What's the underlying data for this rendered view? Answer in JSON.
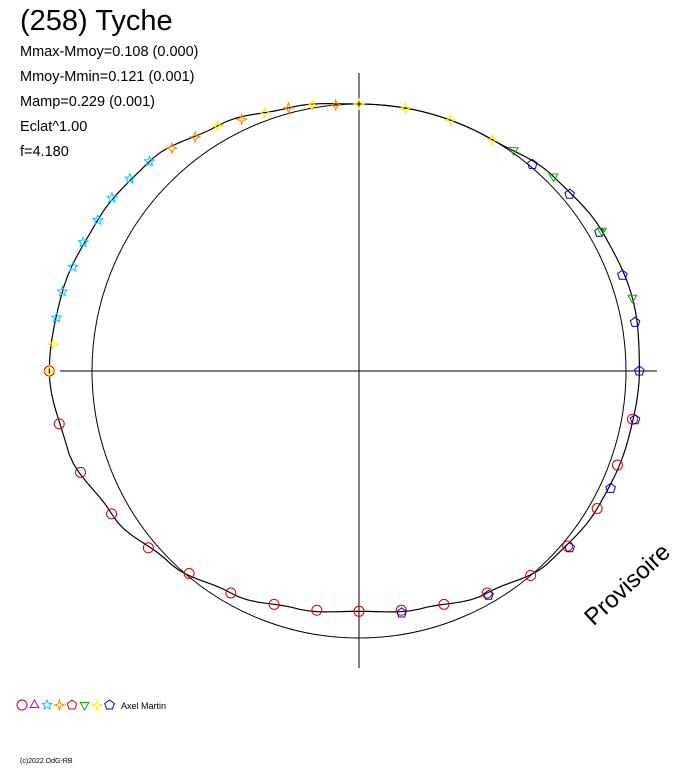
{
  "title": "(258) Tyche",
  "stats": [
    "Mmax-Mmoy=0.108 (0.000)",
    "Mmoy-Mmin=0.121 (0.001)",
    "Mamp=0.229 (0.001)",
    "Eclat^1.00",
    "f=4.180"
  ],
  "watermark": "Provisoire",
  "copyright": "(c)2022 OdG-RB",
  "legend": {
    "author": "Axel Martin",
    "markers": [
      {
        "shape": "circle",
        "color": "#dd0000"
      },
      {
        "shape": "triangle",
        "color": "#cc00cc"
      },
      {
        "shape": "star",
        "color": "#00c8ff"
      },
      {
        "shape": "star4",
        "color": "#ff8800"
      },
      {
        "shape": "pentagon",
        "color": "#dd0000"
      },
      {
        "shape": "triangle-down",
        "color": "#00b000"
      },
      {
        "shape": "star4",
        "color": "#ffee00"
      },
      {
        "shape": "pentagon",
        "color": "#0000cc"
      }
    ]
  },
  "chart_data": {
    "type": "scatter",
    "coordinate_system": "polar",
    "description_of_axes": "angle = rotational phase, radius = relative brightness (Eclat^1.00)",
    "reference_circle_radius": 1.0,
    "rlim": [
      0,
      1.17
    ],
    "grid": false,
    "series": [
      {
        "marker": "circle",
        "color": "#dd0000",
        "points": [
          [
            180,
            1.16
          ],
          [
            190,
            1.14
          ],
          [
            200,
            1.11
          ],
          [
            210,
            1.07
          ],
          [
            220,
            1.03
          ],
          [
            230,
            0.99
          ],
          [
            240,
            0.96
          ],
          [
            250,
            0.93
          ],
          [
            260,
            0.91
          ],
          [
            270,
            0.9
          ],
          [
            280,
            0.91
          ],
          [
            290,
            0.93
          ],
          [
            300,
            0.96
          ],
          [
            310,
            1.0
          ],
          [
            320,
            1.02
          ],
          [
            330,
            1.03
          ],
          [
            340,
            1.03
          ],
          [
            350,
            1.04
          ]
        ]
      },
      {
        "marker": "pentagon",
        "color": "#0000cc",
        "points": [
          [
            0,
            1.05
          ],
          [
            10,
            1.05
          ],
          [
            20,
            1.05
          ],
          [
            30,
            1.04
          ],
          [
            40,
            1.03
          ],
          [
            50,
            1.01
          ],
          [
            280,
            0.92
          ],
          [
            300,
            0.97
          ],
          [
            320,
            1.03
          ],
          [
            335,
            1.04
          ],
          [
            350,
            1.05
          ]
        ]
      },
      {
        "marker": "triangle-down",
        "color": "#00b000",
        "points": [
          [
            15,
            1.06
          ],
          [
            30,
            1.05
          ],
          [
            45,
            1.03
          ],
          [
            55,
            1.01
          ]
        ]
      },
      {
        "marker": "star4",
        "color": "#ffee00",
        "points": [
          [
            60,
            1.0
          ],
          [
            70,
            1.0
          ],
          [
            80,
            1.0
          ],
          [
            90,
            1.0
          ],
          [
            100,
            1.01
          ],
          [
            110,
            1.03
          ],
          [
            120,
            1.06
          ],
          [
            180,
            1.16
          ],
          [
            175,
            1.15
          ]
        ]
      },
      {
        "marker": "star4",
        "color": "#ff8800",
        "points": [
          [
            95,
            1.0
          ],
          [
            105,
            1.02
          ],
          [
            115,
            1.04
          ],
          [
            125,
            1.07
          ],
          [
            130,
            1.09
          ]
        ]
      },
      {
        "marker": "star",
        "color": "#00c8ff",
        "points": [
          [
            135,
            1.11
          ],
          [
            140,
            1.12
          ],
          [
            145,
            1.13
          ],
          [
            150,
            1.13
          ],
          [
            155,
            1.14
          ],
          [
            160,
            1.14
          ],
          [
            165,
            1.15
          ],
          [
            170,
            1.15
          ]
        ]
      }
    ],
    "fit_curve": [
      [
        0,
        1.05
      ],
      [
        15,
        1.06
      ],
      [
        30,
        1.05
      ],
      [
        45,
        1.03
      ],
      [
        60,
        1.0
      ],
      [
        75,
        1.0
      ],
      [
        90,
        1.0
      ],
      [
        105,
        1.02
      ],
      [
        120,
        1.06
      ],
      [
        135,
        1.11
      ],
      [
        150,
        1.13
      ],
      [
        165,
        1.15
      ],
      [
        180,
        1.16
      ],
      [
        195,
        1.13
      ],
      [
        210,
        1.07
      ],
      [
        225,
        1.01
      ],
      [
        240,
        0.96
      ],
      [
        255,
        0.92
      ],
      [
        270,
        0.9
      ],
      [
        285,
        0.92
      ],
      [
        300,
        0.96
      ],
      [
        315,
        1.01
      ],
      [
        330,
        1.03
      ],
      [
        345,
        1.04
      ],
      [
        360,
        1.05
      ]
    ]
  }
}
